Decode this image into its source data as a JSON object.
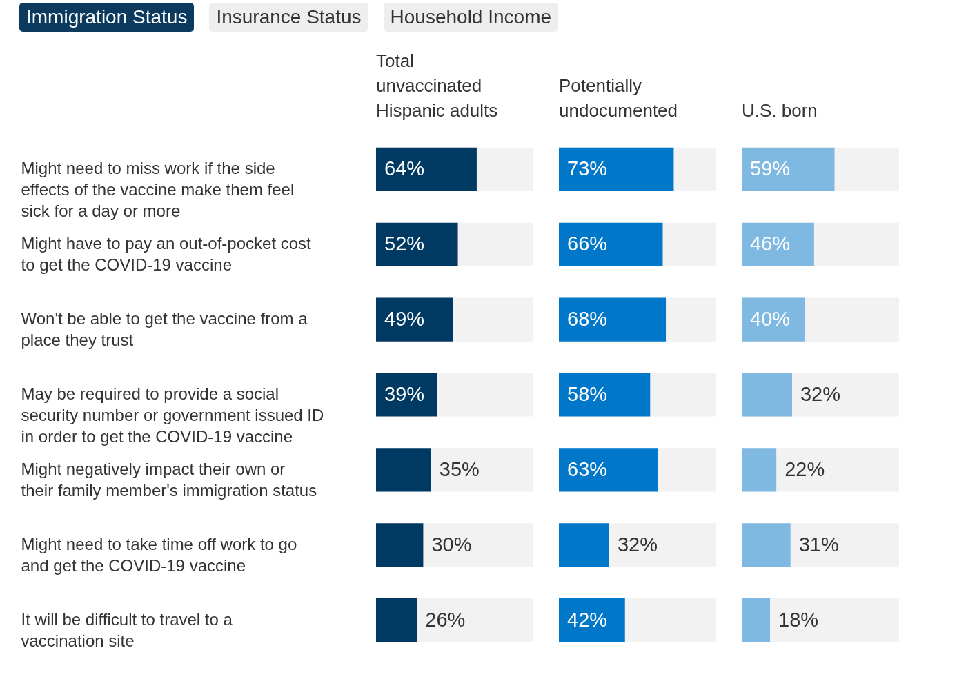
{
  "chart_data": [
    {
      "type": "other",
      "annotations": [
        "Immigration Status",
        "Insurance Status",
        "Household Income"
      ]
    },
    {
      "type": "bar",
      "orientation": "horizontal",
      "title": "Total unvaccinated Hispanic adults",
      "categories": [
        "Might need to miss work if the side effects of the vaccine make them feel sick for a day or more",
        "Might have to pay an out-of-pocket cost to get the COVID-19 vaccine",
        "Won't be able to get the vaccine from a place they trust",
        "May be required to provide a social security number or government issued ID in order to get the COVID-19 vaccine",
        "Might negatively impact their own or their family member's immigration status",
        "Might need to take time off work to go and get the COVID-19 vaccine",
        "It will be difficult to travel to a vaccination site"
      ],
      "values": [
        64,
        52,
        49,
        39,
        35,
        30,
        26
      ],
      "value_labels": [
        "64%",
        "52%",
        "49%",
        "39%",
        "35%",
        "30%",
        "26%"
      ],
      "color": "#003a63",
      "xlim": [
        0,
        100
      ],
      "tick_labels": "y"
    },
    {
      "type": "bar",
      "orientation": "horizontal",
      "title": "Potentially undocumented",
      "categories": [
        null,
        null,
        null,
        null,
        null,
        null,
        null
      ],
      "values": [
        73,
        66,
        68,
        58,
        63,
        32,
        42
      ],
      "value_labels": [
        "73%",
        "66%",
        "68%",
        "58%",
        "63%",
        "32%",
        "42%"
      ],
      "color": "#0077c8",
      "xlim": [
        0,
        100
      ],
      "tick_labels": false
    },
    {
      "type": "bar",
      "orientation": "horizontal",
      "title": "U.S. born",
      "categories": [
        null,
        null,
        null,
        null,
        null,
        null,
        null
      ],
      "values": [
        59,
        46,
        40,
        32,
        22,
        31,
        18
      ],
      "value_labels": [
        "59%",
        "46%",
        "40%",
        "32%",
        "22%",
        "31%",
        "18%"
      ],
      "color": "#7fb8e0",
      "xlim": [
        0,
        100
      ],
      "tick_labels": false
    }
  ]
}
